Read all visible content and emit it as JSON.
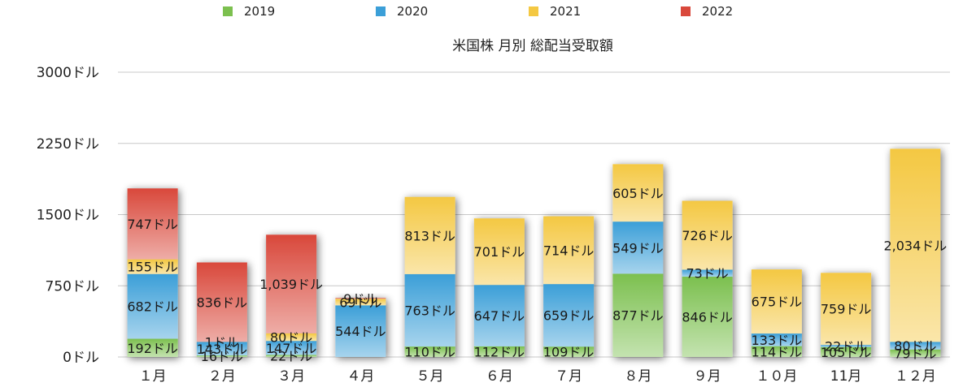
{
  "chart_data": {
    "type": "bar",
    "stacked": true,
    "title": "米国株 月別 総配当受取額",
    "xlabel": "",
    "ylabel": "",
    "ylim": [
      0,
      3000
    ],
    "yticks": [
      0,
      750,
      1500,
      2250,
      3000
    ],
    "ytick_labels": [
      "0ドル",
      "750ドル",
      "1500ドル",
      "2250ドル",
      "3000ドル"
    ],
    "grid": true,
    "legend_position": "top",
    "categories": [
      "１月",
      "２月",
      "３月",
      "４月",
      "５月",
      "６月",
      "７月",
      "８月",
      "９月",
      "１０月",
      "11月",
      "１２月"
    ],
    "series": [
      {
        "name": "2019",
        "color": "#7cc04f",
        "values": [
          192,
          16,
          22,
          0,
          110,
          112,
          109,
          877,
          846,
          114,
          105,
          79
        ],
        "labels": [
          "192ドル",
          "16ドル",
          "22ドル",
          "",
          "110ドル",
          "112ドル",
          "109ドル",
          "877ドル",
          "846ドル",
          "114ドル",
          "105ドル",
          "79ドル"
        ]
      },
      {
        "name": "2020",
        "color": "#3b9fd8",
        "values": [
          682,
          143,
          147,
          544,
          763,
          647,
          659,
          549,
          73,
          133,
          22,
          80
        ],
        "labels": [
          "682ドル",
          "143ドル",
          "147ドル",
          "544ドル",
          "763ドル",
          "647ドル",
          "659ドル",
          "549ドル",
          "73ドル",
          "133ドル",
          "22ドル",
          "80ドル"
        ]
      },
      {
        "name": "2021",
        "color": "#f4c842",
        "values": [
          155,
          1,
          80,
          69,
          813,
          701,
          714,
          605,
          726,
          675,
          759,
          2034
        ],
        "labels": [
          "155ドル",
          "1ドル",
          "80ドル",
          "69ドル",
          "813ドル",
          "701ドル",
          "714ドル",
          "605ドル",
          "726ドル",
          "675ドル",
          "759ドル",
          "2,034ドル"
        ]
      },
      {
        "name": "2022",
        "color": "#d9483b",
        "values": [
          747,
          836,
          1039,
          9,
          0,
          0,
          0,
          0,
          0,
          0,
          0,
          0
        ],
        "labels": [
          "747ドル",
          "836ドル",
          "1,039ドル",
          "9ドル",
          "",
          "",
          "",
          "",
          "",
          "",
          "",
          ""
        ]
      }
    ]
  }
}
